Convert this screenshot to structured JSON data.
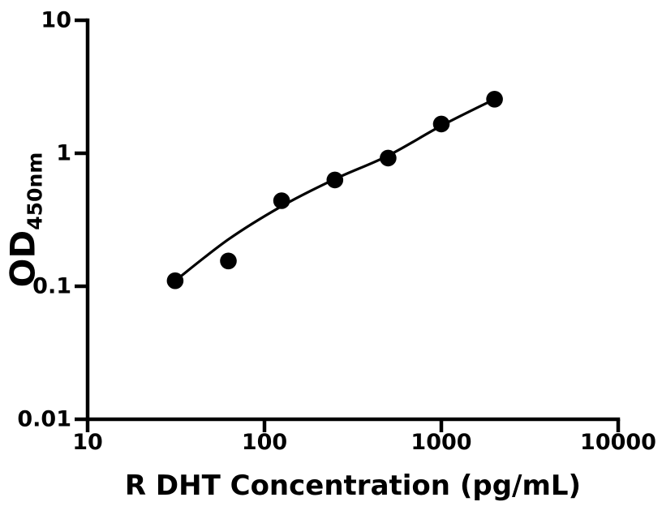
{
  "figure": {
    "background": "#ffffff"
  },
  "chart_data": {
    "type": "scatter",
    "title": "",
    "xlabel": "R DHT Concentration (pg/mL)",
    "ylabel_main": "OD",
    "ylabel_sub": "450nm",
    "x_scale": "log",
    "y_scale": "log",
    "xlim": [
      10,
      10000
    ],
    "ylim": [
      0.01,
      10
    ],
    "grid": false,
    "legend": false,
    "x_ticks": [
      {
        "value": 10,
        "label": "10"
      },
      {
        "value": 100,
        "label": "100"
      },
      {
        "value": 1000,
        "label": "1000"
      },
      {
        "value": 10000,
        "label": "10000"
      }
    ],
    "y_ticks": [
      {
        "value": 10,
        "label": "10"
      },
      {
        "value": 1,
        "label": "1"
      },
      {
        "value": 0.1,
        "label": "0.1"
      },
      {
        "value": 0.01,
        "label": "0.01"
      }
    ],
    "series": [
      {
        "marker": "circle",
        "color": "#000000",
        "x": [
          31.25,
          62.5,
          125,
          250,
          500,
          1000,
          2000
        ],
        "y": [
          0.11,
          0.155,
          0.44,
          0.63,
          0.92,
          1.66,
          2.55
        ]
      }
    ],
    "fit_curve": {
      "color": "#000000",
      "x": [
        31.25,
        62.5,
        125,
        250,
        500,
        1000,
        2000
      ],
      "y": [
        0.11,
        0.225,
        0.4,
        0.64,
        0.96,
        1.61,
        2.55
      ]
    },
    "colors": {
      "axis": "#000000",
      "marker": "#000000",
      "curve": "#000000",
      "text": "#000000",
      "background": "#ffffff"
    }
  }
}
